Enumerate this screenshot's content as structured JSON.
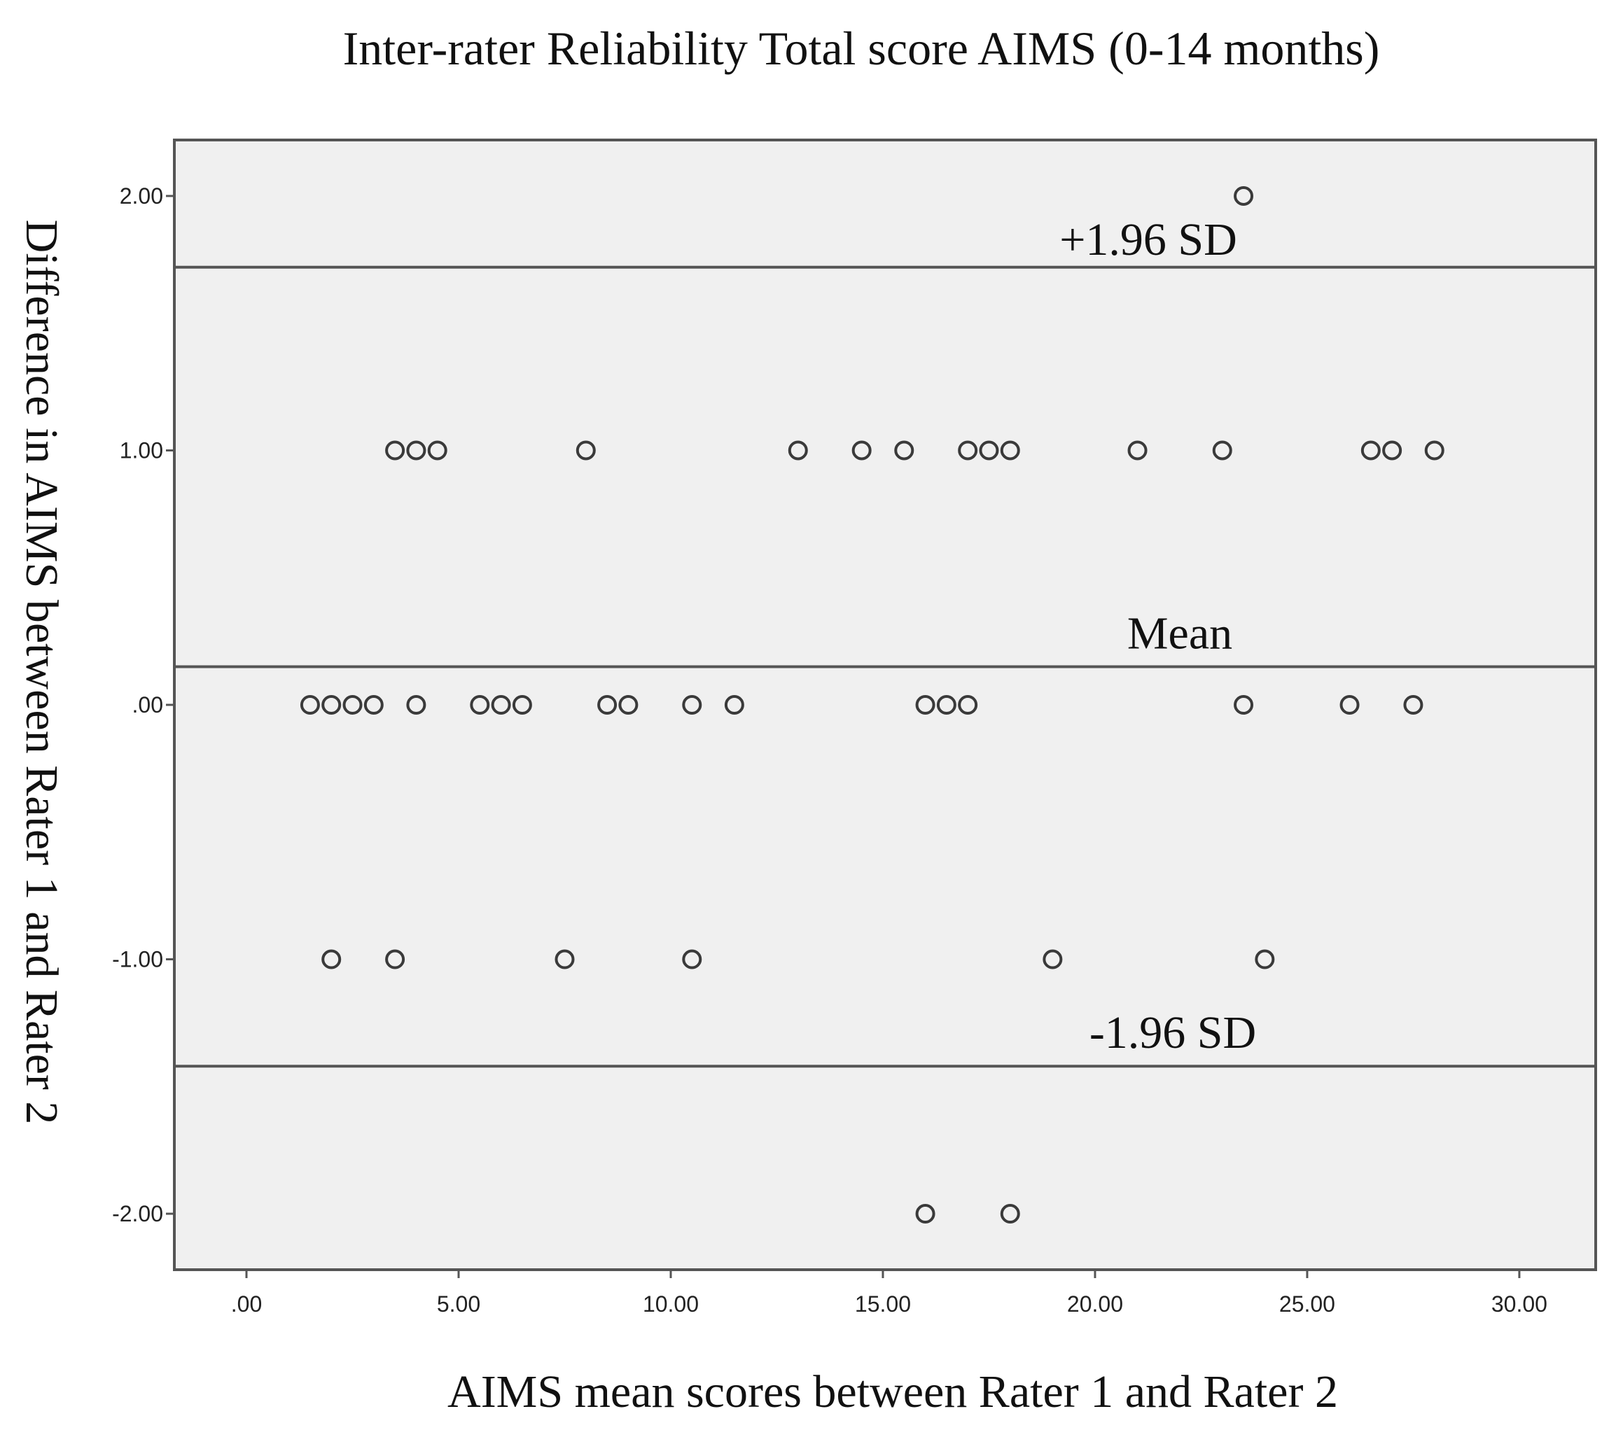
{
  "chart_data": {
    "type": "scatter",
    "title": "Inter-rater Reliability Total score AIMS (0-14 months)",
    "xlabel": "AIMS mean scores between Rater 1 and Rater 2",
    "ylabel": "Difference in AIMS between Rater 1 and Rater 2",
    "xlim": [
      -1.7,
      31.8
    ],
    "ylim": [
      -2.22,
      2.22
    ],
    "x_ticks": [
      0,
      5,
      10,
      15,
      20,
      25,
      30
    ],
    "x_tick_labels": [
      ".00",
      "5.00",
      "10.00",
      "15.00",
      "20.00",
      "25.00",
      "30.00"
    ],
    "y_ticks": [
      2,
      1,
      0,
      -1,
      -2
    ],
    "y_tick_labels": [
      "2.00",
      "1.00",
      ".00",
      "-1.00",
      "-2.00"
    ],
    "grid": false,
    "reference_lines": [
      {
        "name": "+1.96 SD",
        "y": 1.72
      },
      {
        "name": "Mean",
        "y": 0.15
      },
      {
        "name": "-1.96 SD",
        "y": -1.42
      }
    ],
    "points": [
      {
        "x": 23.5,
        "y": 2
      },
      {
        "x": 3.5,
        "y": 1
      },
      {
        "x": 4.0,
        "y": 1
      },
      {
        "x": 4.5,
        "y": 1
      },
      {
        "x": 8.0,
        "y": 1
      },
      {
        "x": 13.0,
        "y": 1
      },
      {
        "x": 14.5,
        "y": 1
      },
      {
        "x": 15.5,
        "y": 1
      },
      {
        "x": 17.0,
        "y": 1
      },
      {
        "x": 17.5,
        "y": 1
      },
      {
        "x": 18.0,
        "y": 1
      },
      {
        "x": 21.0,
        "y": 1
      },
      {
        "x": 23.0,
        "y": 1
      },
      {
        "x": 26.5,
        "y": 1
      },
      {
        "x": 27.0,
        "y": 1
      },
      {
        "x": 28.0,
        "y": 1
      },
      {
        "x": 1.5,
        "y": 0
      },
      {
        "x": 2.0,
        "y": 0
      },
      {
        "x": 2.5,
        "y": 0
      },
      {
        "x": 3.0,
        "y": 0
      },
      {
        "x": 4.0,
        "y": 0
      },
      {
        "x": 5.5,
        "y": 0
      },
      {
        "x": 6.0,
        "y": 0
      },
      {
        "x": 6.5,
        "y": 0
      },
      {
        "x": 8.5,
        "y": 0
      },
      {
        "x": 9.0,
        "y": 0
      },
      {
        "x": 10.5,
        "y": 0
      },
      {
        "x": 11.5,
        "y": 0
      },
      {
        "x": 16.0,
        "y": 0
      },
      {
        "x": 16.5,
        "y": 0
      },
      {
        "x": 17.0,
        "y": 0
      },
      {
        "x": 23.5,
        "y": 0
      },
      {
        "x": 26.0,
        "y": 0
      },
      {
        "x": 27.5,
        "y": 0
      },
      {
        "x": 2.0,
        "y": -1
      },
      {
        "x": 3.5,
        "y": -1
      },
      {
        "x": 7.5,
        "y": -1
      },
      {
        "x": 10.5,
        "y": -1
      },
      {
        "x": 19.0,
        "y": -1
      },
      {
        "x": 24.0,
        "y": -1
      },
      {
        "x": 16.0,
        "y": -2
      },
      {
        "x": 18.0,
        "y": -2
      }
    ]
  }
}
